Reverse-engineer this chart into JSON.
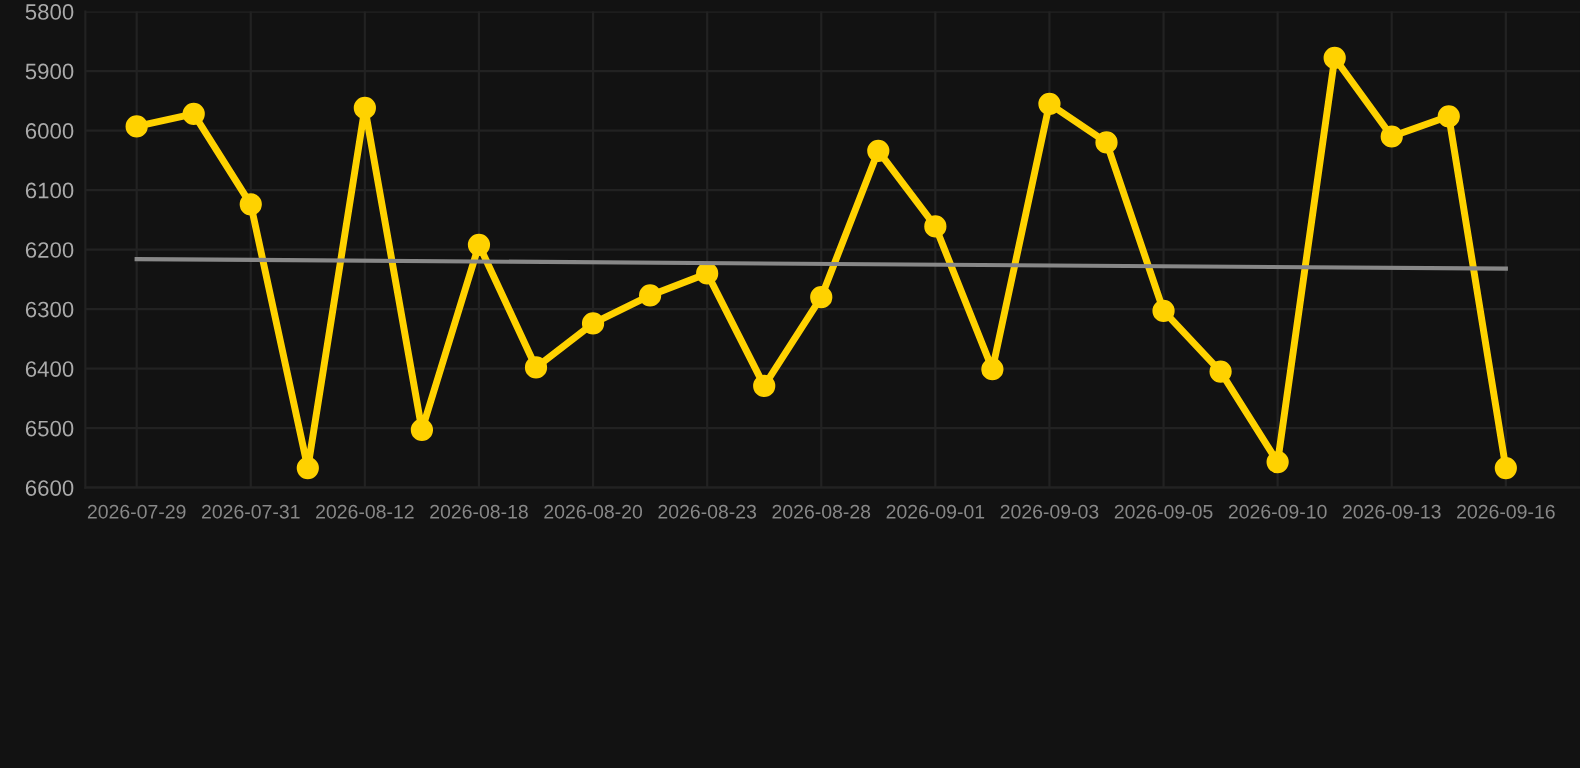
{
  "chart_data": {
    "type": "line",
    "categories": [
      "2026-07-29",
      null,
      "2026-07-31",
      null,
      "2026-08-12",
      null,
      "2026-08-18",
      null,
      "2026-08-20",
      null,
      "2026-08-23",
      null,
      "2026-08-28",
      null,
      "2026-09-01",
      null,
      "2026-09-03",
      null,
      "2026-09-05",
      null,
      "2026-09-10",
      null,
      "2026-09-13",
      null,
      "2026-09-16"
    ],
    "series": [
      {
        "color": "#ffd200",
        "marker": "circle",
        "values": [
          5993,
          5972,
          6124,
          6567,
          5962,
          6503,
          6192,
          6398,
          6324,
          6277,
          6240,
          6429,
          6280,
          6034,
          6161,
          6401,
          5955,
          6020,
          6303,
          6405,
          6557,
          5878,
          6010,
          5976,
          6567
        ]
      },
      {
        "color": "#888888",
        "marker": "none",
        "values": [
          6216,
          null,
          null,
          null,
          null,
          null,
          null,
          null,
          null,
          null,
          null,
          null,
          null,
          null,
          null,
          null,
          null,
          null,
          null,
          null,
          null,
          null,
          null,
          null,
          6232
        ]
      }
    ],
    "ylim": [
      6600,
      5800
    ],
    "yticks": [
      5800,
      5900,
      6000,
      6100,
      6200,
      6300,
      6400,
      6500,
      6600
    ],
    "grid": true,
    "line_style": "solid"
  }
}
